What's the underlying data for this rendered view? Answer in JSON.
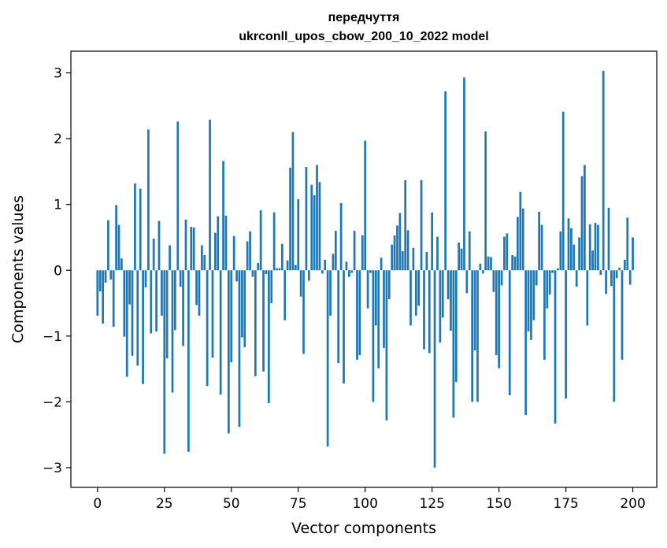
{
  "chart_data": {
    "type": "bar",
    "title": "передчуття",
    "subtitle": "ukrconll_upos_cbow_200_10_2022 model",
    "xlabel": "Vector components",
    "ylabel": "Components values",
    "xlim": [
      -9.95,
      208.95
    ],
    "ylim": [
      -3.3,
      3.33
    ],
    "xticks": [
      0,
      25,
      50,
      75,
      100,
      125,
      150,
      175,
      200
    ],
    "yticks": [
      -3,
      -2,
      -1,
      0,
      1,
      2,
      3
    ],
    "ytick_labels": [
      "−3",
      "−2",
      "−1",
      "0",
      "1",
      "2",
      "3"
    ],
    "bar_color": "#1f77b4",
    "values": [
      -0.69,
      -0.32,
      -0.81,
      -0.19,
      0.76,
      -0.14,
      -0.86,
      0.99,
      0.69,
      0.18,
      -1.01,
      -1.62,
      -0.52,
      -1.3,
      1.32,
      -1.45,
      1.24,
      -1.73,
      -0.26,
      2.14,
      -0.96,
      0.48,
      -0.93,
      0.75,
      -0.69,
      -2.79,
      -1.34,
      0.38,
      -1.86,
      -0.91,
      2.26,
      -0.25,
      -1.15,
      0.77,
      -2.76,
      0.66,
      0.65,
      -0.53,
      -0.69,
      0.38,
      0.23,
      -1.76,
      2.29,
      -1.33,
      0.57,
      0.82,
      -1.89,
      1.66,
      0.83,
      -2.48,
      -1.4,
      0.52,
      -0.17,
      -2.38,
      -1.02,
      -1.17,
      0.44,
      0.59,
      -0.1,
      -1.61,
      0.11,
      0.91,
      -1.54,
      -0.06,
      -2.02,
      -0.5,
      0.88,
      0.03,
      0.03,
      0.4,
      -0.76,
      0.15,
      1.56,
      2.1,
      0.08,
      1.08,
      -0.4,
      -1.27,
      1.57,
      -0.16,
      1.3,
      1.14,
      1.6,
      1.34,
      -0.05,
      0.16,
      -2.68,
      -0.69,
      0.25,
      0.6,
      -1.41,
      1.02,
      -1.72,
      0.13,
      -0.1,
      -0.04,
      0.6,
      -1.36,
      -1.29,
      0.53,
      1.97,
      -0.58,
      -0.04,
      -2.0,
      -0.84,
      -1.49,
      0.19,
      -1.18,
      -2.28,
      -0.44,
      0.39,
      0.53,
      0.68,
      0.87,
      0.29,
      1.37,
      0.61,
      -0.84,
      0.34,
      -0.69,
      -0.54,
      1.37,
      -1.2,
      0.28,
      -1.26,
      0.88,
      -3.0,
      0.51,
      -1.1,
      -0.72,
      2.72,
      -0.44,
      -0.92,
      -2.24,
      -1.7,
      0.42,
      0.33,
      2.93,
      -0.35,
      0.59,
      -2.0,
      -1.22,
      -2.0,
      0.1,
      -0.05,
      2.11,
      0.21,
      0.2,
      -0.33,
      -1.29,
      -1.49,
      -0.23,
      0.51,
      0.56,
      -1.9,
      0.23,
      0.21,
      0.81,
      1.19,
      0.94,
      -2.2,
      -0.93,
      -1.06,
      -0.76,
      -0.23,
      0.89,
      0.69,
      -1.36,
      -0.58,
      -0.37,
      -0.04,
      -2.33,
      0.03,
      0.59,
      2.41,
      -1.95,
      0.79,
      0.64,
      0.39,
      -0.25,
      0.5,
      1.43,
      1.6,
      -0.84,
      0.7,
      0.3,
      0.72,
      0.69,
      -0.07,
      3.03,
      -0.36,
      0.95,
      -0.24,
      -2.0,
      -0.12,
      0.04,
      -1.36,
      0.16,
      0.8,
      -0.22,
      0.5
    ]
  }
}
